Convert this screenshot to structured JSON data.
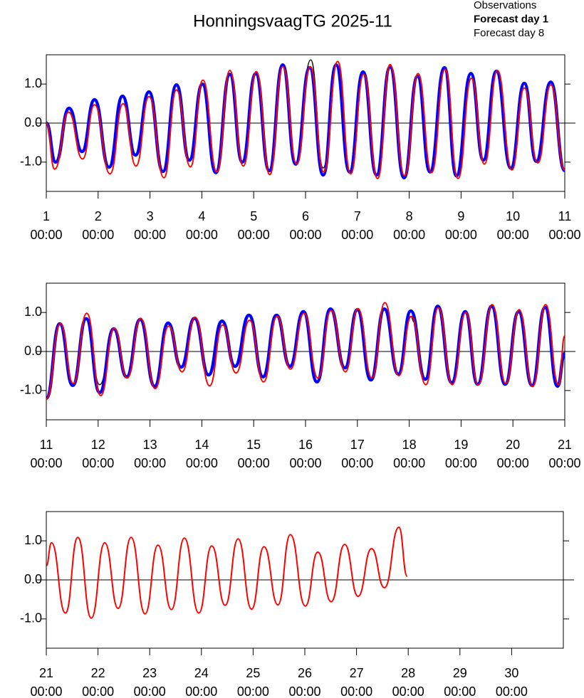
{
  "chart_data": [
    {
      "type": "line",
      "title": "HonningsvaagTG 2025-11",
      "time_label": "00:00",
      "xlim": [
        1,
        11
      ],
      "xticks": [
        1,
        2,
        3,
        4,
        5,
        6,
        7,
        8,
        9,
        10,
        11
      ],
      "ylim": [
        -1.75,
        1.75
      ],
      "yticks": [
        {
          "value": -1,
          "label": "-1.0"
        },
        {
          "value": 0,
          "label": "0.0"
        },
        {
          "value": 1,
          "label": "1.0"
        }
      ],
      "zero_line": true,
      "series": [
        {
          "name": "Observations",
          "color": "#000000",
          "x": [
            1.0,
            1.18,
            1.44,
            1.69,
            1.93,
            2.21,
            2.47,
            2.72,
            2.98,
            3.25,
            3.51,
            3.76,
            4.01,
            4.27,
            4.54,
            4.78,
            5.04,
            5.3,
            5.56,
            5.81,
            6.1,
            6.34,
            6.59,
            6.85,
            7.11,
            7.37,
            7.63,
            7.9,
            8.16,
            8.4,
            8.68,
            8.91,
            9.19,
            9.43,
            9.68,
            9.96,
            10.22,
            10.45,
            10.73,
            11.0
          ],
          "values": [
            0,
            -1.0,
            0.38,
            -0.73,
            0.6,
            -1.13,
            0.69,
            -0.82,
            0.8,
            -1.24,
            0.98,
            -0.95,
            1.0,
            -1.27,
            1.25,
            -1.0,
            1.27,
            -1.22,
            1.49,
            -1.05,
            1.62,
            -1.15,
            1.49,
            -1.25,
            1.31,
            -1.33,
            1.44,
            -1.4,
            1.2,
            -1.25,
            1.42,
            -1.35,
            1.27,
            -0.95,
            1.33,
            -1.15,
            1.02,
            -0.98,
            1.05,
            -1.22
          ]
        },
        {
          "name": "Forecast day 1",
          "color": "#0000ff",
          "x": [
            1.0,
            1.18,
            1.44,
            1.69,
            1.93,
            2.21,
            2.47,
            2.72,
            2.98,
            3.25,
            3.51,
            3.76,
            4.01,
            4.27,
            4.54,
            4.78,
            5.04,
            5.3,
            5.56,
            5.81,
            6.08,
            6.34,
            6.59,
            6.85,
            7.11,
            7.37,
            7.63,
            7.9,
            8.16,
            8.4,
            8.68,
            8.91,
            9.19,
            9.43,
            9.68,
            9.96,
            10.22,
            10.45,
            10.73,
            11.0
          ],
          "values": [
            0,
            -1.0,
            0.38,
            -0.73,
            0.6,
            -1.13,
            0.69,
            -0.82,
            0.8,
            -1.24,
            0.98,
            -0.95,
            1.0,
            -1.27,
            1.25,
            -1.0,
            1.27,
            -1.22,
            1.49,
            -1.05,
            1.42,
            -1.33,
            1.49,
            -1.25,
            1.31,
            -1.33,
            1.44,
            -1.4,
            1.2,
            -1.25,
            1.42,
            -1.35,
            1.27,
            -0.95,
            1.33,
            -1.15,
            1.02,
            -0.98,
            1.05,
            -1.22
          ]
        },
        {
          "name": "Forecast day 8",
          "color": "#ff0000",
          "x": [
            1.0,
            1.16,
            1.43,
            1.7,
            1.93,
            2.23,
            2.48,
            2.73,
            2.98,
            3.27,
            3.51,
            3.78,
            4.02,
            4.29,
            4.54,
            4.8,
            5.05,
            5.31,
            5.56,
            5.83,
            6.09,
            6.35,
            6.62,
            6.87,
            7.12,
            7.39,
            7.63,
            7.91,
            8.17,
            8.43,
            8.69,
            8.94,
            9.2,
            9.45,
            9.7,
            9.98,
            10.22,
            10.48,
            10.73,
            11.0
          ],
          "values": [
            0,
            -1.18,
            0.28,
            -0.92,
            0.47,
            -1.3,
            0.5,
            -1.1,
            0.68,
            -1.4,
            0.85,
            -1.12,
            1.1,
            -1.25,
            1.35,
            -1.1,
            1.32,
            -1.32,
            1.45,
            -1.05,
            1.45,
            -1.25,
            1.58,
            -1.3,
            1.25,
            -1.42,
            1.5,
            -1.35,
            1.27,
            -1.27,
            1.38,
            -1.42,
            1.15,
            -1.05,
            1.35,
            -1.2,
            0.9,
            -1.02,
            0.98,
            -1.2
          ]
        }
      ]
    },
    {
      "type": "line",
      "time_label": "00:00",
      "xlim": [
        11,
        21
      ],
      "xticks": [
        11,
        12,
        13,
        14,
        15,
        16,
        17,
        18,
        19,
        20,
        21
      ],
      "ylim": [
        -1.75,
        1.75
      ],
      "yticks": [
        {
          "value": -1,
          "label": "-1.0"
        },
        {
          "value": 0,
          "label": "0.0"
        },
        {
          "value": 1,
          "label": "1.0"
        }
      ],
      "zero_line": true,
      "series": [
        {
          "name": "Observations",
          "color": "#000000",
          "x": [
            11.0,
            11.26,
            11.51,
            11.77,
            12.03,
            12.3,
            12.55,
            12.81,
            13.09,
            13.35,
            13.6,
            13.86,
            14.13,
            14.39,
            14.64,
            14.91,
            15.18,
            15.44,
            15.7,
            15.96,
            16.22,
            16.48,
            16.76,
            17.0,
            17.26,
            17.52,
            17.79,
            18.03,
            18.1
          ],
          "values": [
            -1.2,
            0.71,
            -0.87,
            0.84,
            -0.85,
            0.58,
            -0.65,
            0.82,
            -0.89,
            0.73,
            -0.4,
            0.85,
            -0.6,
            0.78,
            -0.38,
            0.93,
            -0.65,
            0.93,
            -0.38,
            1.02,
            -0.78,
            1.09,
            -0.42,
            1.07,
            -0.73,
            1.09,
            -0.58,
            0.9,
            0.75
          ]
        },
        {
          "name": "Forecast day 1",
          "color": "#0000ff",
          "x": [
            11.0,
            11.26,
            11.51,
            11.77,
            12.03,
            12.3,
            12.55,
            12.81,
            13.09,
            13.35,
            13.6,
            13.86,
            14.13,
            14.39,
            14.64,
            14.91,
            15.18,
            15.44,
            15.7,
            15.96,
            16.22,
            16.48,
            16.76,
            17.0,
            17.26,
            17.52,
            17.79,
            18.03,
            18.31,
            18.55,
            18.82,
            19.08,
            19.32,
            19.59,
            19.85,
            20.11,
            20.37,
            20.62,
            20.86,
            21.0
          ],
          "values": [
            -1.2,
            0.71,
            -0.87,
            0.84,
            -1.05,
            0.58,
            -0.65,
            0.82,
            -0.89,
            0.73,
            -0.4,
            0.85,
            -0.6,
            0.78,
            -0.38,
            0.93,
            -0.65,
            0.93,
            -0.38,
            1.02,
            -0.78,
            1.09,
            -0.42,
            1.07,
            -0.73,
            1.09,
            -0.58,
            1.04,
            -0.71,
            1.16,
            -0.8,
            1.02,
            -0.84,
            1.16,
            -0.84,
            1.02,
            -0.87,
            1.13,
            -0.89,
            -0.05
          ]
        },
        {
          "name": "Forecast day 8",
          "color": "#ff0000",
          "x": [
            11.0,
            11.27,
            11.52,
            11.78,
            12.05,
            12.31,
            12.56,
            12.82,
            13.1,
            13.36,
            13.62,
            13.87,
            14.15,
            14.4,
            14.66,
            14.92,
            15.19,
            15.45,
            15.71,
            15.97,
            16.24,
            16.49,
            16.77,
            17.01,
            17.28,
            17.53,
            17.8,
            18.04,
            18.32,
            18.56,
            18.83,
            19.09,
            19.33,
            19.6,
            19.86,
            20.12,
            20.38,
            20.63,
            20.88,
            21.0
          ],
          "values": [
            -1.22,
            0.72,
            -0.82,
            0.98,
            -1.13,
            0.6,
            -0.68,
            0.85,
            -0.95,
            0.65,
            -0.52,
            0.88,
            -0.88,
            0.68,
            -0.55,
            0.8,
            -0.78,
            0.9,
            -0.45,
            0.98,
            -0.68,
            1.05,
            -0.52,
            1.1,
            -0.68,
            1.25,
            -0.62,
            0.9,
            -0.85,
            1.12,
            -0.85,
            1.0,
            -0.86,
            1.2,
            -0.82,
            1.07,
            -0.9,
            1.2,
            -0.85,
            0.4
          ]
        }
      ]
    },
    {
      "type": "line",
      "time_label": "00:00",
      "xlim": [
        21,
        31
      ],
      "xticks": [
        21,
        22,
        23,
        24,
        25,
        26,
        27,
        28,
        29,
        30
      ],
      "ylim": [
        -1.75,
        1.75
      ],
      "yticks": [
        {
          "value": -1,
          "label": "-1.0"
        },
        {
          "value": 0,
          "label": "0.0"
        },
        {
          "value": 1,
          "label": "1.0"
        }
      ],
      "zero_line": true,
      "series": [
        {
          "name": "Forecast day 8",
          "color": "#ff0000",
          "x": [
            21.0,
            21.1,
            21.37,
            21.61,
            21.87,
            22.13,
            22.39,
            22.64,
            22.91,
            23.16,
            23.42,
            23.67,
            23.95,
            24.2,
            24.46,
            24.71,
            24.97,
            25.21,
            25.48,
            25.72,
            26.01,
            26.25,
            26.51,
            26.77,
            27.03,
            27.29,
            27.54,
            27.82,
            27.98
          ],
          "values": [
            0.36,
            0.95,
            -0.85,
            1.09,
            -0.98,
            0.95,
            -0.73,
            1.09,
            -0.87,
            0.89,
            -0.76,
            1.07,
            -0.85,
            0.87,
            -0.65,
            1.05,
            -0.75,
            0.85,
            -0.64,
            1.16,
            -0.67,
            0.71,
            -0.56,
            0.91,
            -0.42,
            0.8,
            -0.2,
            1.35,
            0.09
          ]
        }
      ]
    }
  ]
}
